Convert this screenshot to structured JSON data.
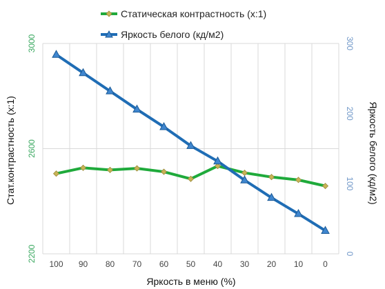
{
  "chart_data": {
    "type": "line",
    "xlabel": "Яркость в меню (%)",
    "categories": [
      "100",
      "90",
      "80",
      "70",
      "60",
      "50",
      "40",
      "30",
      "20",
      "10",
      "0"
    ],
    "ylabel_left": "Стат.контрастность  (x:1)",
    "ylabel_right": "Яркость белого (кд/м2)",
    "ylim_left": [
      2200,
      3000
    ],
    "ylim_right": [
      0,
      300
    ],
    "yticks_left": [
      "2200",
      "2600",
      "3000"
    ],
    "yticks_right": [
      "0",
      "100",
      "200",
      "300"
    ],
    "left_axis_color": "#3aa860",
    "right_axis_color": "#6f97c8",
    "grid": true,
    "legend_position": "top",
    "series": [
      {
        "name": "Статическая контрастность (x:1)",
        "axis": "left",
        "color": "#1faa3b",
        "marker": "diamond",
        "marker_color": "#c8b457",
        "values": [
          2505,
          2527,
          2519,
          2525,
          2512,
          2485,
          2534,
          2508,
          2492,
          2481,
          2458
        ]
      },
      {
        "name": "Яркость белого (кд/м2)",
        "axis": "right",
        "color": "#1f6db5",
        "marker": "triangle",
        "marker_color": "#3f86cf",
        "values": [
          284,
          258,
          232,
          206,
          181,
          154,
          132,
          105,
          80,
          57,
          33
        ]
      }
    ]
  }
}
